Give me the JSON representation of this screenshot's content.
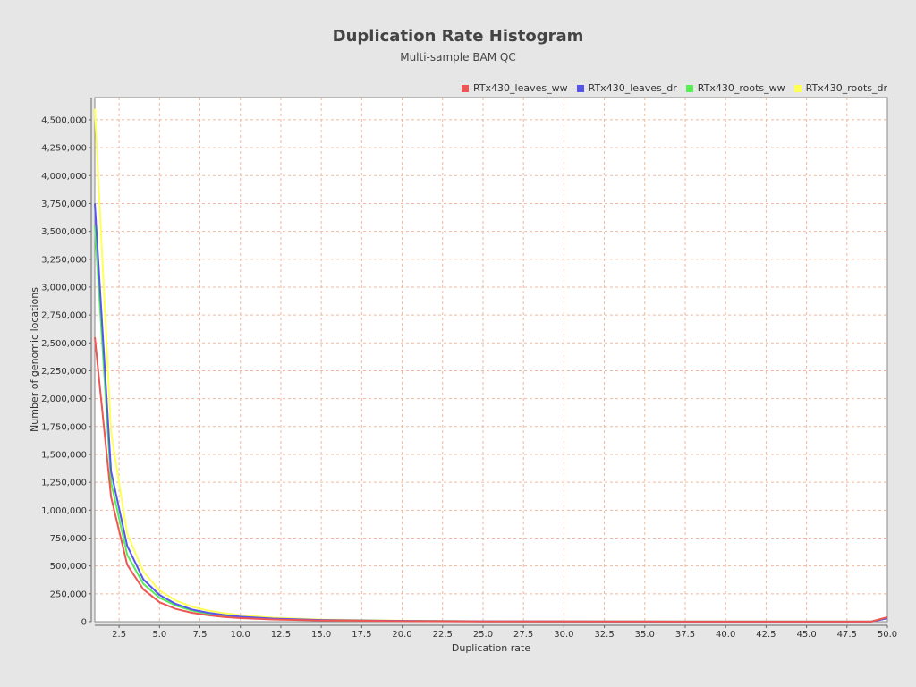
{
  "chart_data": {
    "type": "line",
    "title": "Duplication Rate Histogram",
    "subtitle": "Multi-sample BAM QC",
    "xlabel": "Duplication rate",
    "ylabel": "Number of genomic locations",
    "xlim": [
      1,
      50
    ],
    "ylim": [
      0,
      4700000
    ],
    "grid": true,
    "legend_position": "top-right",
    "x_ticks": [
      "2.5",
      "5.0",
      "7.5",
      "10.0",
      "12.5",
      "15.0",
      "17.5",
      "20.0",
      "22.5",
      "25.0",
      "27.5",
      "30.0",
      "32.5",
      "35.0",
      "37.5",
      "40.0",
      "42.5",
      "45.0",
      "47.5",
      "50.0"
    ],
    "y_ticks": [
      "0",
      "250,000",
      "500,000",
      "750,000",
      "1,000,000",
      "1,250,000",
      "1,500,000",
      "1,750,000",
      "2,000,000",
      "2,250,000",
      "2,500,000",
      "2,750,000",
      "3,000,000",
      "3,250,000",
      "3,500,000",
      "3,750,000",
      "4,000,000",
      "4,250,000",
      "4,500,000"
    ],
    "series": [
      {
        "name": "RTx430_leaves_ww",
        "color": "#ee5555",
        "x": [
          1,
          2,
          3,
          4,
          5,
          6,
          7,
          8,
          9,
          10,
          12,
          15,
          20,
          25,
          30,
          40,
          49,
          50
        ],
        "values": [
          2550000,
          1120000,
          510000,
          290000,
          175000,
          115000,
          80000,
          58000,
          42000,
          32000,
          20000,
          11000,
          5000,
          2500,
          1500,
          800,
          500,
          40000
        ]
      },
      {
        "name": "RTx430_leaves_dr",
        "color": "#5555ee",
        "x": [
          1,
          2,
          3,
          4,
          5,
          6,
          7,
          8,
          9,
          10,
          12,
          15,
          20,
          25,
          30,
          40,
          49,
          50
        ],
        "values": [
          3750000,
          1350000,
          680000,
          380000,
          240000,
          160000,
          110000,
          80000,
          60000,
          45000,
          28000,
          15000,
          7000,
          3500,
          1800,
          900,
          500,
          30000
        ]
      },
      {
        "name": "RTx430_roots_ww",
        "color": "#55ee55",
        "x": [
          1,
          2,
          3,
          4,
          5,
          6,
          7,
          8,
          9,
          10,
          12,
          15,
          20,
          25,
          30,
          40,
          49,
          50
        ],
        "values": [
          3550000,
          1250000,
          600000,
          340000,
          215000,
          145000,
          100000,
          72000,
          54000,
          41000,
          25000,
          13000,
          6000,
          3000,
          1600,
          850,
          500,
          35000
        ]
      },
      {
        "name": "RTx430_roots_dr",
        "color": "#ffff55",
        "x": [
          1,
          2,
          3,
          4,
          5,
          6,
          7,
          8,
          9,
          10,
          12,
          15,
          20,
          25,
          30,
          40,
          49,
          50
        ],
        "values": [
          4600000,
          1700000,
          790000,
          450000,
          280000,
          190000,
          135000,
          100000,
          76000,
          58000,
          36000,
          19000,
          8500,
          4000,
          2000,
          1000,
          500,
          30000
        ]
      }
    ]
  }
}
